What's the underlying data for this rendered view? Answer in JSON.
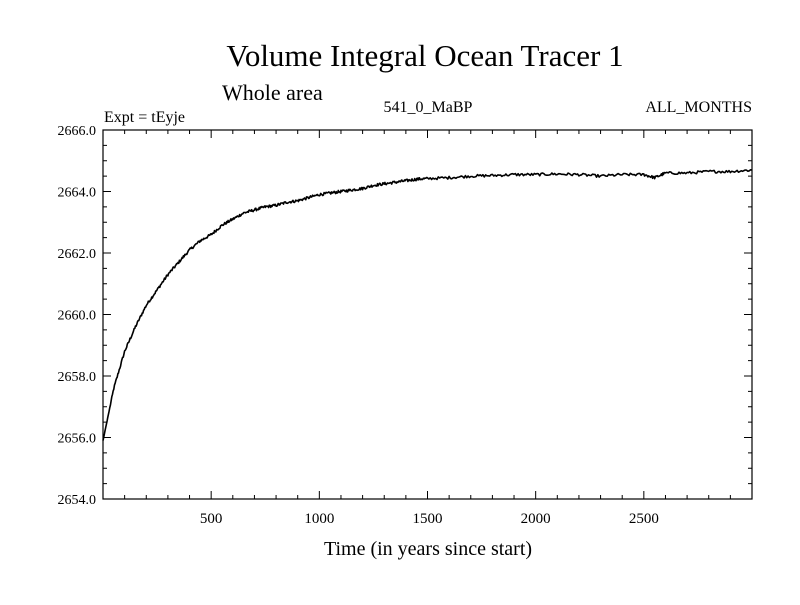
{
  "chart_data": {
    "type": "line",
    "title": "Volume Integral Ocean Tracer 1",
    "subtitle": "Whole area",
    "header_left": "Expt = tEyje",
    "header_center": "541_0_MaBP",
    "header_right": "ALL_MONTHS",
    "xlabel": "Time (in years since start)",
    "ylabel": "",
    "xlim": [
      0,
      3000
    ],
    "ylim": [
      2654.0,
      2666.0
    ],
    "x_ticks": [
      500,
      1000,
      1500,
      2000,
      2500
    ],
    "x_tick_labels": [
      "500",
      "1000",
      "1500",
      "2000",
      "2500"
    ],
    "y_ticks": [
      2654.0,
      2656.0,
      2658.0,
      2660.0,
      2662.0,
      2664.0,
      2666.0
    ],
    "y_tick_labels": [
      "2654.0",
      "2656.0",
      "2658.0",
      "2660.0",
      "2662.0",
      "2664.0",
      "2666.0"
    ],
    "grid": false,
    "line_color": "#000000",
    "series": [
      {
        "x": [
          0,
          50,
          100,
          150,
          200,
          250,
          300,
          350,
          400,
          450,
          500,
          550,
          600,
          650,
          700,
          750,
          800,
          850,
          900,
          950,
          1000,
          1050,
          1100,
          1150,
          1200,
          1250,
          1300,
          1350,
          1400,
          1450,
          1500,
          1600,
          1700,
          1800,
          1900,
          2000,
          2100,
          2200,
          2300,
          2400,
          2500,
          2550,
          2600,
          2700,
          2800,
          2900,
          3000
        ],
        "values": [
          2655.9,
          2657.6,
          2658.8,
          2659.6,
          2660.3,
          2660.8,
          2661.3,
          2661.7,
          2662.1,
          2662.4,
          2662.6,
          2662.9,
          2663.1,
          2663.3,
          2663.4,
          2663.5,
          2663.55,
          2663.65,
          2663.7,
          2663.8,
          2663.9,
          2663.95,
          2664.0,
          2664.05,
          2664.1,
          2664.2,
          2664.25,
          2664.3,
          2664.35,
          2664.4,
          2664.42,
          2664.45,
          2664.5,
          2664.52,
          2664.55,
          2664.55,
          2664.57,
          2664.55,
          2664.5,
          2664.55,
          2664.55,
          2664.45,
          2664.6,
          2664.6,
          2664.65,
          2664.65,
          2664.7
        ]
      }
    ]
  }
}
